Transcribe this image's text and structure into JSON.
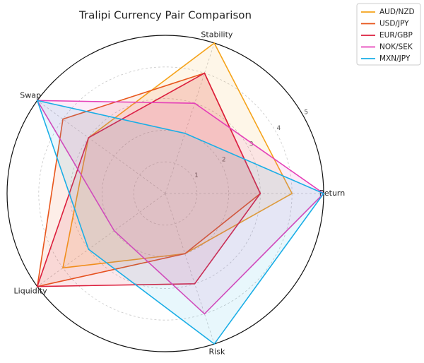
{
  "chart_data": {
    "type": "radar",
    "title": "Tralipi Currency Pair Comparison",
    "categories": [
      "Return",
      "Stability",
      "Swap",
      "Liquidity",
      "Risk"
    ],
    "series": [
      {
        "name": "AUD/NZD",
        "color": "#f5a31a",
        "values": [
          4,
          5,
          3,
          4,
          2
        ]
      },
      {
        "name": "USD/JPY",
        "color": "#e8561c",
        "values": [
          3,
          4,
          4,
          5,
          2
        ]
      },
      {
        "name": "EUR/GBP",
        "color": "#dc1e3c",
        "values": [
          3,
          4,
          3,
          5,
          3
        ]
      },
      {
        "name": "NOK/SEK",
        "color": "#e540b8",
        "values": [
          5,
          3,
          5,
          2,
          4
        ]
      },
      {
        "name": "MXN/JPY",
        "color": "#1aaee6",
        "values": [
          5,
          2,
          5,
          3,
          5
        ]
      }
    ],
    "ylim": [
      0,
      5
    ],
    "yticks": [
      1,
      2,
      3,
      4,
      5
    ],
    "grid": true,
    "legend": "upper right"
  }
}
